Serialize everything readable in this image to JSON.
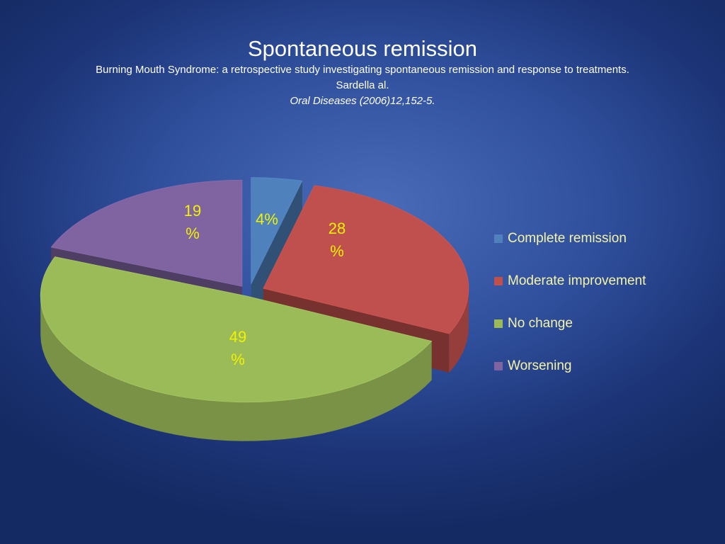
{
  "header": {
    "title": "Spontaneous remission",
    "line1": "Burning Mouth Syndrome: a retrospective study investigating spontaneous remission and response to treatments.",
    "line2": "Sardella al.",
    "line3": "Oral Diseases (2006)12,152-5."
  },
  "chart_data": {
    "type": "pie",
    "title": "Spontaneous remission",
    "legend_position": "right",
    "categories": [
      "Complete remission",
      "Moderate improvement",
      "No change",
      "Worsening"
    ],
    "values": [
      4,
      28,
      49,
      19
    ],
    "value_labels": [
      "4%",
      "28\n%",
      "49\n%",
      "19\n%"
    ],
    "colors": [
      "#4f81bd",
      "#c0504d",
      "#9bbb59",
      "#8064a2"
    ],
    "exploded": true,
    "three_d": true
  }
}
